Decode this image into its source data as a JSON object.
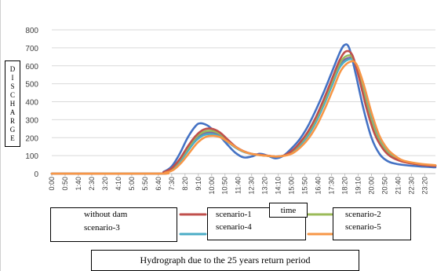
{
  "chart_data": {
    "type": "line",
    "title": "Hydrograph due to the 25 years return period",
    "xlabel": "time",
    "ylabel": "DISCHARGE",
    "ylim": [
      0,
      800
    ],
    "yticks": [
      0,
      100,
      200,
      300,
      400,
      500,
      600,
      700,
      800
    ],
    "x_tick_labels": [
      "0:00",
      "0:50",
      "1:40",
      "2:30",
      "3:20",
      "4:10",
      "5:00",
      "5:50",
      "6:40",
      "7:30",
      "8:20",
      "9:10",
      "10:00",
      "10:50",
      "11:40",
      "12:30",
      "13:20",
      "14:10",
      "15:00",
      "15:50",
      "16:40",
      "17:30",
      "18:20",
      "19:10",
      "20:00",
      "20:50",
      "21:40",
      "22:30",
      "23:20"
    ],
    "x_range_hours": [
      0,
      24
    ],
    "grid": "horizontal",
    "series": [
      {
        "name": "without dam",
        "color": "#4472C4",
        "points": [
          [
            0,
            0
          ],
          [
            6.5,
            0
          ],
          [
            7.0,
            10
          ],
          [
            7.5,
            40
          ],
          [
            8.0,
            110
          ],
          [
            8.5,
            200
          ],
          [
            9.0,
            265
          ],
          [
            9.3,
            280
          ],
          [
            9.7,
            270
          ],
          [
            10.0,
            250
          ],
          [
            10.5,
            210
          ],
          [
            11.0,
            160
          ],
          [
            11.5,
            115
          ],
          [
            12.0,
            90
          ],
          [
            12.5,
            95
          ],
          [
            13.0,
            110
          ],
          [
            13.5,
            100
          ],
          [
            14.0,
            85
          ],
          [
            14.5,
            100
          ],
          [
            15.0,
            140
          ],
          [
            15.5,
            190
          ],
          [
            16.0,
            260
          ],
          [
            16.5,
            350
          ],
          [
            17.0,
            450
          ],
          [
            17.5,
            560
          ],
          [
            18.0,
            670
          ],
          [
            18.3,
            715
          ],
          [
            18.6,
            700
          ],
          [
            19.0,
            560
          ],
          [
            19.5,
            360
          ],
          [
            20.0,
            200
          ],
          [
            20.5,
            110
          ],
          [
            21.0,
            70
          ],
          [
            21.5,
            55
          ],
          [
            22.0,
            48
          ],
          [
            23.0,
            40
          ],
          [
            24.0,
            35
          ]
        ]
      },
      {
        "name": "scenario-1",
        "color": "#C0504D",
        "points": [
          [
            0,
            0
          ],
          [
            6.6,
            0
          ],
          [
            7.0,
            8
          ],
          [
            7.5,
            30
          ],
          [
            8.0,
            80
          ],
          [
            8.5,
            150
          ],
          [
            9.0,
            210
          ],
          [
            9.5,
            245
          ],
          [
            10.0,
            250
          ],
          [
            10.5,
            230
          ],
          [
            11.0,
            190
          ],
          [
            11.5,
            150
          ],
          [
            12.0,
            125
          ],
          [
            12.5,
            110
          ],
          [
            13.0,
            105
          ],
          [
            13.5,
            100
          ],
          [
            14.0,
            95
          ],
          [
            14.5,
            100
          ],
          [
            15.0,
            125
          ],
          [
            15.5,
            170
          ],
          [
            16.0,
            230
          ],
          [
            16.5,
            310
          ],
          [
            17.0,
            410
          ],
          [
            17.5,
            520
          ],
          [
            18.0,
            630
          ],
          [
            18.4,
            680
          ],
          [
            18.8,
            660
          ],
          [
            19.2,
            540
          ],
          [
            19.7,
            360
          ],
          [
            20.2,
            220
          ],
          [
            20.7,
            140
          ],
          [
            21.2,
            95
          ],
          [
            22.0,
            65
          ],
          [
            23.0,
            50
          ],
          [
            24.0,
            42
          ]
        ]
      },
      {
        "name": "scenario-2",
        "color": "#9BBB59",
        "points": [
          [
            0,
            0
          ],
          [
            6.6,
            0
          ],
          [
            7.0,
            7
          ],
          [
            7.5,
            27
          ],
          [
            8.0,
            75
          ],
          [
            8.5,
            140
          ],
          [
            9.0,
            200
          ],
          [
            9.5,
            232
          ],
          [
            10.0,
            238
          ],
          [
            10.5,
            222
          ],
          [
            11.0,
            185
          ],
          [
            11.5,
            148
          ],
          [
            12.0,
            123
          ],
          [
            12.5,
            110
          ],
          [
            13.0,
            104
          ],
          [
            13.5,
            99
          ],
          [
            14.0,
            95
          ],
          [
            14.5,
            100
          ],
          [
            15.0,
            122
          ],
          [
            15.5,
            165
          ],
          [
            16.0,
            222
          ],
          [
            16.5,
            300
          ],
          [
            17.0,
            398
          ],
          [
            17.5,
            505
          ],
          [
            18.0,
            612
          ],
          [
            18.45,
            655
          ],
          [
            18.85,
            640
          ],
          [
            19.3,
            520
          ],
          [
            19.8,
            350
          ],
          [
            20.3,
            215
          ],
          [
            20.8,
            138
          ],
          [
            21.3,
            95
          ],
          [
            22.0,
            66
          ],
          [
            23.0,
            50
          ],
          [
            24.0,
            43
          ]
        ]
      },
      {
        "name": "scenario-3",
        "color": "#8064A2",
        "points": [
          [
            0,
            0
          ],
          [
            6.6,
            0
          ],
          [
            7.0,
            6
          ],
          [
            7.5,
            25
          ],
          [
            8.0,
            70
          ],
          [
            8.5,
            132
          ],
          [
            9.0,
            190
          ],
          [
            9.5,
            222
          ],
          [
            10.0,
            228
          ],
          [
            10.5,
            214
          ],
          [
            11.0,
            180
          ],
          [
            11.5,
            146
          ],
          [
            12.0,
            122
          ],
          [
            12.5,
            110
          ],
          [
            13.0,
            104
          ],
          [
            13.5,
            99
          ],
          [
            14.0,
            95
          ],
          [
            14.5,
            100
          ],
          [
            15.0,
            120
          ],
          [
            15.5,
            160
          ],
          [
            16.0,
            215
          ],
          [
            16.5,
            292
          ],
          [
            17.0,
            388
          ],
          [
            17.5,
            495
          ],
          [
            18.0,
            600
          ],
          [
            18.5,
            642
          ],
          [
            18.9,
            628
          ],
          [
            19.35,
            510
          ],
          [
            19.85,
            345
          ],
          [
            20.35,
            212
          ],
          [
            20.85,
            137
          ],
          [
            21.35,
            95
          ],
          [
            22.0,
            67
          ],
          [
            23.0,
            51
          ],
          [
            24.0,
            44
          ]
        ]
      },
      {
        "name": "scenario-4",
        "color": "#4BACC6",
        "points": [
          [
            0,
            0
          ],
          [
            6.6,
            0
          ],
          [
            7.0,
            6
          ],
          [
            7.5,
            23
          ],
          [
            8.0,
            65
          ],
          [
            8.5,
            125
          ],
          [
            9.0,
            182
          ],
          [
            9.5,
            214
          ],
          [
            10.0,
            220
          ],
          [
            10.5,
            207
          ],
          [
            11.0,
            176
          ],
          [
            11.5,
            144
          ],
          [
            12.0,
            121
          ],
          [
            12.5,
            109
          ],
          [
            13.0,
            103
          ],
          [
            13.5,
            99
          ],
          [
            14.0,
            95
          ],
          [
            14.5,
            100
          ],
          [
            15.0,
            118
          ],
          [
            15.5,
            156
          ],
          [
            16.0,
            208
          ],
          [
            16.5,
            283
          ],
          [
            17.0,
            378
          ],
          [
            17.5,
            484
          ],
          [
            18.0,
            590
          ],
          [
            18.55,
            635
          ],
          [
            18.95,
            620
          ],
          [
            19.4,
            505
          ],
          [
            19.9,
            342
          ],
          [
            20.4,
            210
          ],
          [
            20.9,
            136
          ],
          [
            21.4,
            95
          ],
          [
            22.0,
            68
          ],
          [
            23.0,
            52
          ],
          [
            24.0,
            45
          ]
        ]
      },
      {
        "name": "scenario-5",
        "color": "#F79646",
        "points": [
          [
            0,
            0
          ],
          [
            6.7,
            0
          ],
          [
            7.1,
            5
          ],
          [
            7.6,
            20
          ],
          [
            8.1,
            60
          ],
          [
            8.6,
            115
          ],
          [
            9.1,
            170
          ],
          [
            9.6,
            203
          ],
          [
            10.1,
            210
          ],
          [
            10.6,
            200
          ],
          [
            11.1,
            172
          ],
          [
            11.6,
            142
          ],
          [
            12.1,
            120
          ],
          [
            12.6,
            108
          ],
          [
            13.1,
            102
          ],
          [
            13.6,
            98
          ],
          [
            14.1,
            95
          ],
          [
            14.6,
            100
          ],
          [
            15.1,
            115
          ],
          [
            15.6,
            150
          ],
          [
            16.1,
            200
          ],
          [
            16.6,
            272
          ],
          [
            17.1,
            365
          ],
          [
            17.6,
            470
          ],
          [
            18.1,
            575
          ],
          [
            18.65,
            622
          ],
          [
            19.05,
            610
          ],
          [
            19.5,
            500
          ],
          [
            20.0,
            340
          ],
          [
            20.5,
            210
          ],
          [
            21.0,
            137
          ],
          [
            21.5,
            97
          ],
          [
            22.0,
            72
          ],
          [
            23.0,
            55
          ],
          [
            24.0,
            47
          ]
        ]
      }
    ]
  }
}
